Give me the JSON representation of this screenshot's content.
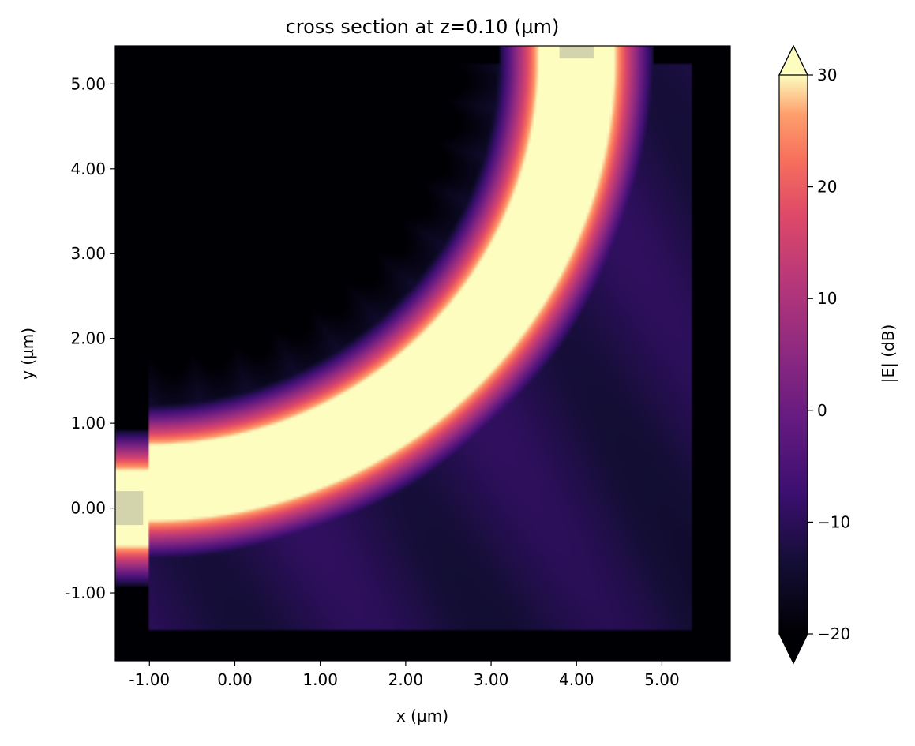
{
  "chart_data": {
    "type": "heatmap",
    "title": "cross section at z=0.10 (µm)",
    "xlabel": "x (µm)",
    "ylabel": "y (µm)",
    "xlim": [
      -1.4,
      5.8
    ],
    "ylim": [
      -1.8,
      5.45
    ],
    "x_ticks": [
      -1.0,
      0.0,
      1.0,
      2.0,
      3.0,
      4.0,
      5.0
    ],
    "x_tick_labels": [
      "-1.00",
      "0.00",
      "1.00",
      "2.00",
      "3.00",
      "4.00",
      "5.00"
    ],
    "y_ticks": [
      -1.0,
      0.0,
      1.0,
      2.0,
      3.0,
      4.0,
      5.0
    ],
    "y_tick_labels": [
      "-1.00",
      "0.00",
      "1.00",
      "2.00",
      "3.00",
      "4.00",
      "5.00"
    ],
    "colorbar": {
      "label": "|E| (dB)",
      "range": [
        -20,
        30
      ],
      "ticks": [
        -20,
        -10,
        0,
        10,
        20,
        30
      ],
      "tick_labels": [
        "−20",
        "−10",
        "0",
        "10",
        "20",
        "30"
      ],
      "extend": "both",
      "colormap": "magma"
    },
    "field": {
      "simulation_region": {
        "x": [
          -1.0,
          5.35
        ],
        "y": [
          -1.45,
          5.25
        ]
      },
      "bend_center": [
        -1.0,
        5.3
      ],
      "bend_radius": 5.0,
      "waveguide_half_width": 0.3,
      "input_waveguide": {
        "x": [
          -1.4,
          -1.0
        ],
        "y_center": 0.0
      },
      "output_waveguide": {
        "x_center": 4.0,
        "y": [
          5.3,
          5.45
        ]
      },
      "core_level_dB": 30,
      "background_level_dB": -20,
      "radiation_level_dB": -11
    }
  }
}
